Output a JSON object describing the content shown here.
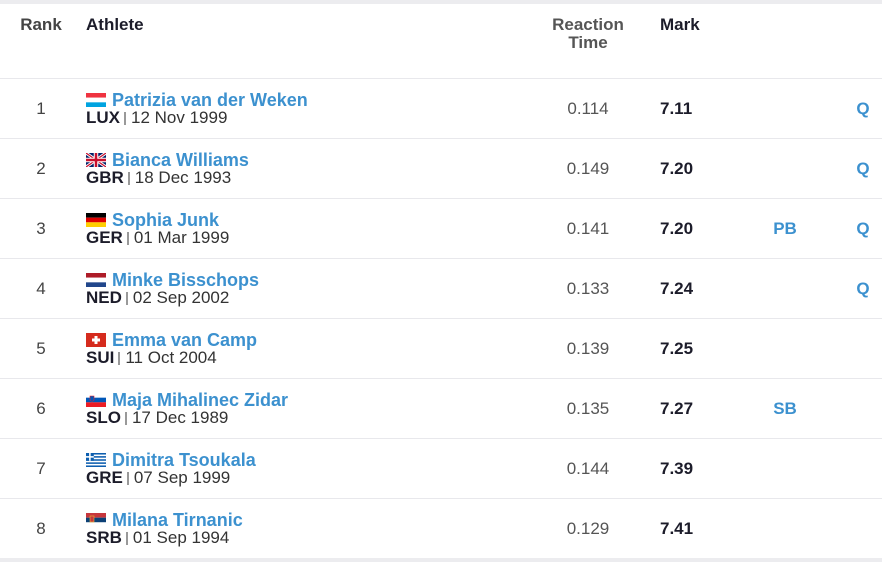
{
  "headers": {
    "rank": "Rank",
    "athlete": "Athlete",
    "reaction_line1": "Reaction",
    "reaction_line2": "Time",
    "mark": "Mark"
  },
  "rows": [
    {
      "rank": "1",
      "name": "Patrizia van der Weken",
      "country": "LUX",
      "dob": "12 Nov 1999",
      "reaction": "0.114",
      "mark": "7.11",
      "record": "",
      "q": "Q",
      "flag": "luxembourg-flag-icon"
    },
    {
      "rank": "2",
      "name": "Bianca Williams",
      "country": "GBR",
      "dob": "18 Dec 1993",
      "reaction": "0.149",
      "mark": "7.20",
      "record": "",
      "q": "Q",
      "flag": "great-britain-flag-icon"
    },
    {
      "rank": "3",
      "name": "Sophia Junk",
      "country": "GER",
      "dob": "01 Mar 1999",
      "reaction": "0.141",
      "mark": "7.20",
      "record": "PB",
      "q": "Q",
      "flag": "germany-flag-icon"
    },
    {
      "rank": "4",
      "name": "Minke Bisschops",
      "country": "NED",
      "dob": "02 Sep 2002",
      "reaction": "0.133",
      "mark": "7.24",
      "record": "",
      "q": "Q",
      "flag": "netherlands-flag-icon"
    },
    {
      "rank": "5",
      "name": "Emma van Camp",
      "country": "SUI",
      "dob": "11 Oct 2004",
      "reaction": "0.139",
      "mark": "7.25",
      "record": "",
      "q": "",
      "flag": "switzerland-flag-icon"
    },
    {
      "rank": "6",
      "name": "Maja Mihalinec Zidar",
      "country": "SLO",
      "dob": "17 Dec 1989",
      "reaction": "0.135",
      "mark": "7.27",
      "record": "SB",
      "q": "",
      "flag": "slovenia-flag-icon"
    },
    {
      "rank": "7",
      "name": "Dimitra Tsoukala",
      "country": "GRE",
      "dob": "07 Sep 1999",
      "reaction": "0.144",
      "mark": "7.39",
      "record": "",
      "q": "",
      "flag": "greece-flag-icon"
    },
    {
      "rank": "8",
      "name": "Milana Tirnanic",
      "country": "SRB",
      "dob": "01 Sep 1994",
      "reaction": "0.129",
      "mark": "7.41",
      "record": "",
      "q": "",
      "flag": "serbia-flag-icon"
    }
  ]
}
